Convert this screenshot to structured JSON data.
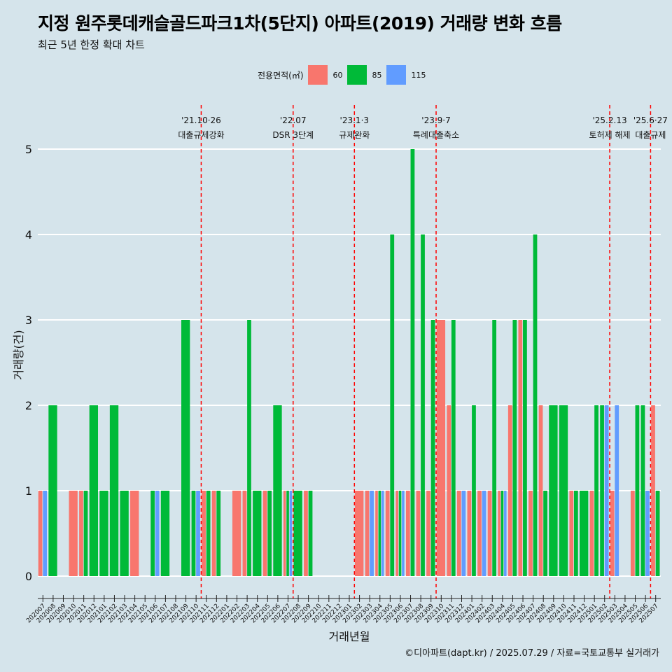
{
  "title": "지정 원주롯데캐슬골드파크1차(5단지) 아파트(2019) 거래량 변화 흐름",
  "subtitle": "최근 5년 한정 확대 차트",
  "credit": "©디아파트(dapt.kr) / 2025.07.29 / 자료=국토교통부 실거래가",
  "chart_data": {
    "type": "bar",
    "xlabel": "거래년월",
    "ylabel": "거래량(건)",
    "ylim": [
      0,
      5
    ],
    "yticks": [
      0,
      1,
      2,
      3,
      4,
      5
    ],
    "grid": true,
    "legend": {
      "title": "전용면적(㎡)",
      "placement": "top",
      "items": [
        {
          "name": "60",
          "color": "#f8766d"
        },
        {
          "name": "85",
          "color": "#00ba38"
        },
        {
          "name": "115",
          "color": "#619cff"
        }
      ]
    },
    "categories": [
      "202007",
      "202008",
      "202009",
      "202010",
      "202011",
      "202012",
      "202101",
      "202102",
      "202103",
      "202104",
      "202105",
      "202106",
      "202107",
      "202108",
      "202109",
      "202110",
      "202111",
      "202112",
      "202201",
      "202202",
      "202203",
      "202204",
      "202205",
      "202206",
      "202207",
      "202208",
      "202209",
      "202210",
      "202211",
      "202212",
      "202301",
      "202302",
      "202303",
      "202304",
      "202305",
      "202306",
      "202307",
      "202308",
      "202309",
      "202310",
      "202311",
      "202312",
      "202401",
      "202402",
      "202403",
      "202404",
      "202405",
      "202406",
      "202407",
      "202408",
      "202409",
      "202410",
      "202411",
      "202412",
      "202501",
      "202502",
      "202503",
      "202504",
      "202505",
      "202506",
      "202507"
    ],
    "series": [
      {
        "name": "60",
        "color": "#f8766d",
        "values": [
          1,
          0,
          0,
          1,
          1,
          0,
          0,
          0,
          0,
          1,
          0,
          0,
          0,
          0,
          0,
          0,
          1,
          1,
          0,
          1,
          1,
          0,
          1,
          0,
          1,
          0,
          1,
          0,
          0,
          0,
          0,
          1,
          1,
          1,
          1,
          1,
          1,
          1,
          1,
          3,
          2,
          1,
          1,
          1,
          1,
          1,
          2,
          3,
          1,
          2,
          0,
          0,
          1,
          0,
          1,
          0,
          1,
          0,
          1,
          0,
          2
        ]
      },
      {
        "name": "85",
        "color": "#00ba38",
        "values": [
          0,
          2,
          0,
          0,
          1,
          2,
          1,
          2,
          1,
          0,
          0,
          1,
          1,
          0,
          3,
          1,
          1,
          1,
          0,
          0,
          3,
          1,
          1,
          2,
          1,
          1,
          1,
          0,
          0,
          0,
          0,
          0,
          0,
          1,
          4,
          1,
          5,
          4,
          3,
          0,
          3,
          0,
          2,
          0,
          3,
          1,
          3,
          3,
          4,
          1,
          2,
          2,
          1,
          1,
          2,
          2,
          0,
          0,
          2,
          2,
          1
        ]
      },
      {
        "name": "115",
        "color": "#619cff",
        "values": [
          1,
          0,
          0,
          0,
          0,
          0,
          0,
          0,
          0,
          0,
          0,
          1,
          0,
          0,
          0,
          1,
          0,
          0,
          0,
          0,
          0,
          0,
          0,
          0,
          1,
          0,
          0,
          0,
          0,
          0,
          0,
          0,
          1,
          1,
          0,
          1,
          0,
          0,
          0,
          0,
          0,
          1,
          0,
          1,
          0,
          1,
          0,
          0,
          0,
          0,
          0,
          0,
          0,
          0,
          0,
          2,
          2,
          0,
          0,
          1,
          0
        ]
      }
    ],
    "events": [
      {
        "after": "202110",
        "date": "'21.10·26",
        "label": "대출규제강화"
      },
      {
        "after": "202207",
        "date": "'22.07",
        "label": "DSR 3단계"
      },
      {
        "after": "202301",
        "date": "'23.1·3",
        "label": "규제완화"
      },
      {
        "after": "202309",
        "date": "'23.9·7",
        "label": "특례대출축소"
      },
      {
        "after": "202502",
        "date": "'25.2.13",
        "label": "토허제 해제"
      },
      {
        "after": "202506",
        "date": "'25.6·27",
        "label": "대출규제"
      }
    ],
    "event_line_color": "#ff0000"
  }
}
